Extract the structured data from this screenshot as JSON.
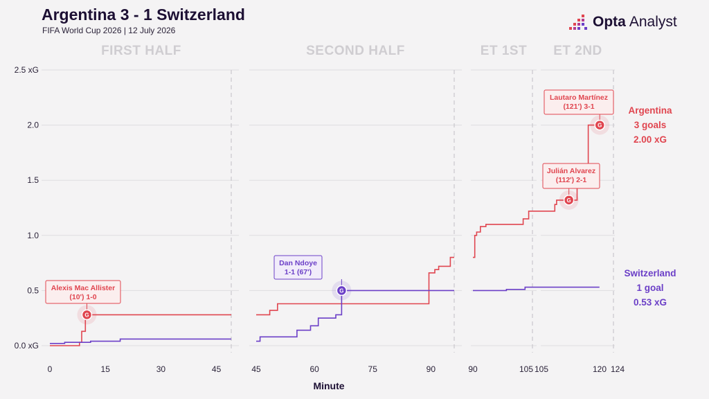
{
  "header": {
    "title": "Argentina 3 - 1 Switzerland",
    "subtitle": "FIFA World Cup 2026 | 12 July 2026"
  },
  "brand": {
    "name_bold": "Opta",
    "name_regular": "Analyst",
    "logo_icon": "opta-dots-icon"
  },
  "colors": {
    "argentina": "#e0454f",
    "switzerland": "#6b3fc7",
    "grid": "#dedde0",
    "divider": "#c9c7cc",
    "period_label": "#cfcdd1",
    "annotation_fill": "#fbeeee",
    "annotation_fill_sw": "#f1ecfa"
  },
  "chart_data": {
    "type": "line",
    "step": true,
    "xlabel": "Minute",
    "ylabel": "",
    "ylim": [
      0,
      2.5
    ],
    "yticks": [
      {
        "value": 0,
        "label": "0.0 xG"
      },
      {
        "value": 0.5,
        "label": "0.5"
      },
      {
        "value": 1.0,
        "label": "1.0"
      },
      {
        "value": 1.5,
        "label": "1.5"
      },
      {
        "value": 2.0,
        "label": "2.0"
      },
      {
        "value": 2.5,
        "label": "2.5 xG"
      }
    ],
    "grid": true,
    "periods": [
      {
        "name": "FIRST HALF",
        "start": 0,
        "end": 49,
        "ticks": [
          0,
          15,
          30,
          45
        ]
      },
      {
        "name": "SECOND HALF",
        "start": 45,
        "end": 96,
        "ticks": [
          45,
          60,
          75,
          90
        ]
      },
      {
        "name": "ET 1ST",
        "start": 90,
        "end": 106,
        "ticks": [
          90,
          105
        ]
      },
      {
        "name": "ET 2ND",
        "start": 105,
        "end": 125,
        "ticks": [
          105,
          120,
          124
        ]
      }
    ],
    "series": [
      {
        "name": "Argentina",
        "team_label": "Argentina",
        "goals_label": "3 goals",
        "xg_label": "2.00 xG",
        "points": [
          [
            0,
            0
          ],
          [
            8,
            0.03
          ],
          [
            8.6,
            0.13
          ],
          [
            9.6,
            0.28
          ],
          [
            49,
            0.28
          ],
          [
            45,
            0.28
          ],
          [
            48.5,
            0.32
          ],
          [
            50.5,
            0.38
          ],
          [
            89.5,
            0.38
          ],
          [
            89.5,
            0.66
          ],
          [
            91,
            0.69
          ],
          [
            92,
            0.72
          ],
          [
            95,
            0.72
          ],
          [
            95,
            0.8
          ],
          [
            96,
            0.8
          ],
          [
            90,
            0.8
          ],
          [
            90.5,
            1.0
          ],
          [
            91,
            1.03
          ],
          [
            92,
            1.08
          ],
          [
            93.5,
            1.1
          ],
          [
            100,
            1.1
          ],
          [
            103.5,
            1.1
          ],
          [
            103.5,
            1.15
          ],
          [
            105,
            1.15
          ],
          [
            105,
            1.22
          ],
          [
            105,
            1.22
          ],
          [
            112,
            1.22
          ],
          [
            112,
            1.28
          ],
          [
            112.5,
            1.32
          ],
          [
            118,
            1.32
          ],
          [
            118,
            1.44
          ],
          [
            121,
            1.44
          ],
          [
            121,
            2.0
          ],
          [
            124,
            2.0
          ]
        ],
        "goals": [
          {
            "minute": 10,
            "xg": 0.28,
            "label_line1": "Alexis Mac Allister",
            "label_line2": "(10') 1-0"
          },
          {
            "minute": 112,
            "xg": 1.32,
            "label_line1": "Julián Alvarez",
            "label_line2": "(112') 2-1"
          },
          {
            "minute": 121,
            "xg": 2.0,
            "label_line1": "Lautaro Martínez",
            "label_line2": "(121') 3-1"
          }
        ]
      },
      {
        "name": "Switzerland",
        "team_label": "Switzerland",
        "goals_label": "1 goal",
        "xg_label": "0.53 xG",
        "points": [
          [
            0,
            0.02
          ],
          [
            4,
            0.02
          ],
          [
            4,
            0.03
          ],
          [
            7.5,
            0.03
          ],
          [
            11,
            0.04
          ],
          [
            19,
            0.04
          ],
          [
            19,
            0.06
          ],
          [
            49,
            0.06
          ],
          [
            45,
            0.04
          ],
          [
            46,
            0.04
          ],
          [
            46,
            0.08
          ],
          [
            52,
            0.08
          ],
          [
            55.5,
            0.14
          ],
          [
            59,
            0.18
          ],
          [
            61,
            0.25
          ],
          [
            65,
            0.25
          ],
          [
            65.5,
            0.28
          ],
          [
            67,
            0.3
          ],
          [
            67,
            0.5
          ],
          [
            96,
            0.5
          ],
          [
            90,
            0.5
          ],
          [
            98,
            0.5
          ],
          [
            99,
            0.51
          ],
          [
            104,
            0.51
          ],
          [
            104,
            0.53
          ],
          [
            105,
            0.53
          ],
          [
            105,
            0.53
          ],
          [
            124,
            0.53
          ]
        ],
        "goals": [
          {
            "minute": 67,
            "xg": 0.5,
            "label_line1": "Dan Ndoye",
            "label_line2": "1-1 (67')"
          }
        ]
      }
    ]
  }
}
